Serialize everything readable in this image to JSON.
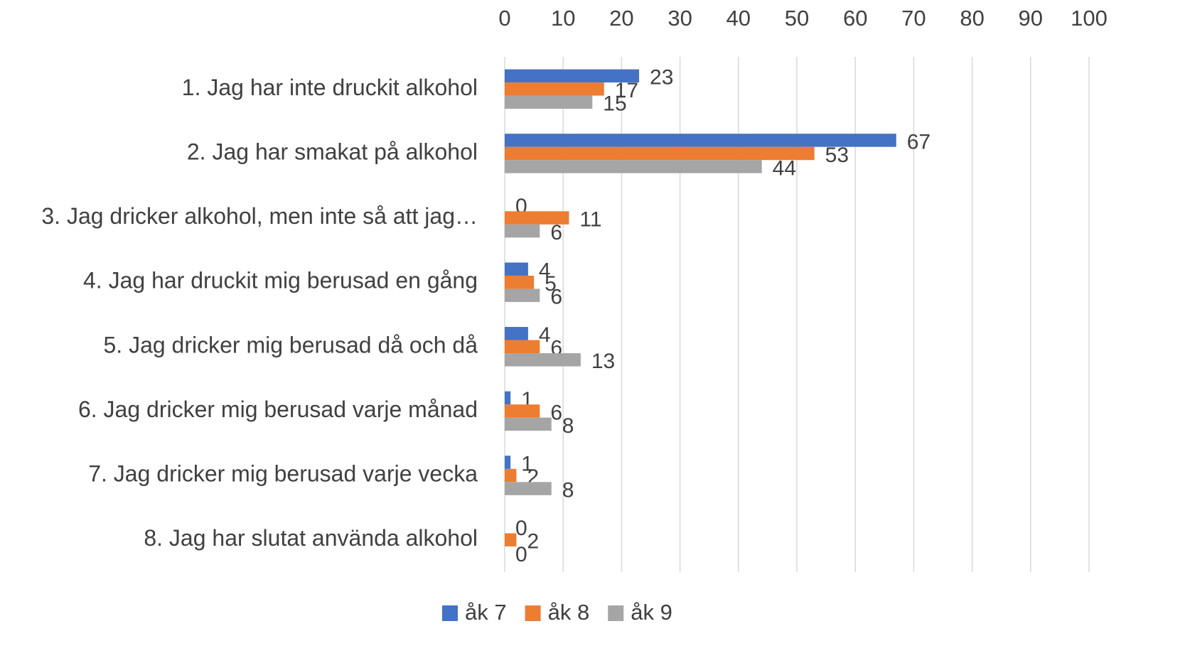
{
  "chart_data": {
    "type": "bar",
    "orientation": "horizontal",
    "categories": [
      "1. Jag har inte druckit alkohol",
      "2. Jag har smakat på alkohol",
      "3. Jag dricker alkohol, men inte så att jag…",
      "4. Jag har druckit mig berusad en gång",
      "5. Jag dricker mig berusad då och då",
      "6. Jag dricker mig berusad varje månad",
      "7. Jag dricker mig berusad varje vecka",
      "8. Jag har slutat använda alkohol"
    ],
    "series": [
      {
        "name": "åk 7",
        "color": "#4472c4",
        "values": [
          23,
          67,
          0,
          4,
          4,
          1,
          1,
          0
        ]
      },
      {
        "name": "åk 8",
        "color": "#ed7d31",
        "values": [
          17,
          53,
          11,
          5,
          6,
          6,
          2,
          2
        ]
      },
      {
        "name": "åk 9",
        "color": "#a5a5a5",
        "values": [
          15,
          44,
          6,
          6,
          13,
          8,
          8,
          0
        ]
      }
    ],
    "xlim": [
      0,
      100
    ],
    "xticks": [
      0,
      10,
      20,
      30,
      40,
      50,
      60,
      70,
      80,
      90,
      100
    ],
    "grid": true,
    "legend": "bottom"
  }
}
